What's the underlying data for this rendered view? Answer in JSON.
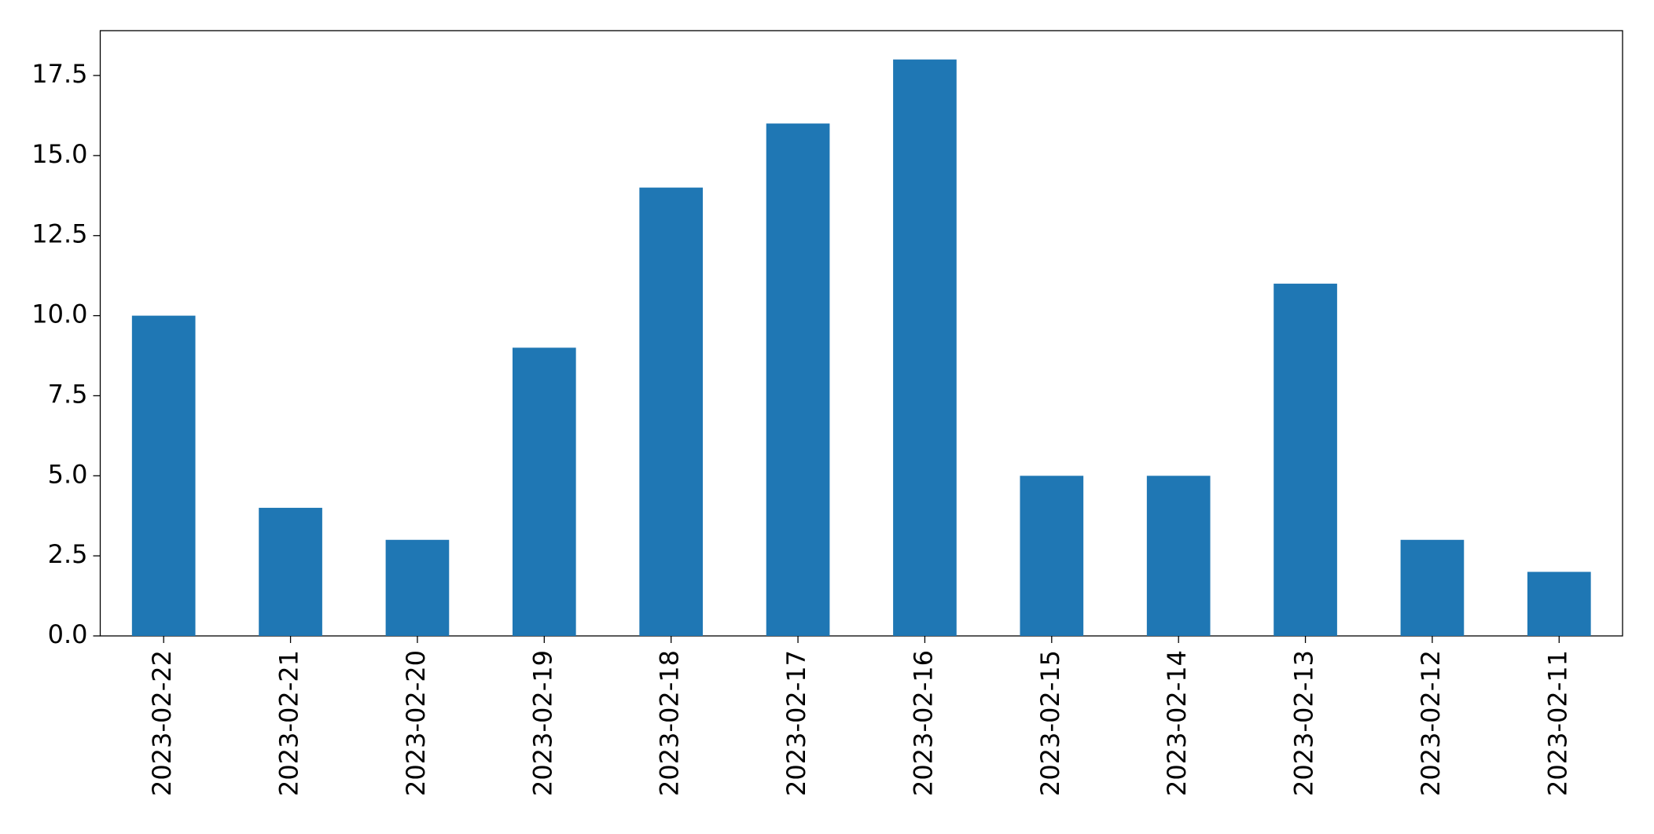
{
  "chart_data": {
    "type": "bar",
    "categories": [
      "2023-02-22",
      "2023-02-21",
      "2023-02-20",
      "2023-02-19",
      "2023-02-18",
      "2023-02-17",
      "2023-02-16",
      "2023-02-15",
      "2023-02-14",
      "2023-02-13",
      "2023-02-12",
      "2023-02-11"
    ],
    "values": [
      10,
      4,
      3,
      9,
      14,
      16,
      18,
      5,
      5,
      11,
      3,
      2
    ],
    "color": "#1f77b4",
    "ylim": [
      0,
      18.9
    ],
    "yticks": [
      {
        "value": 0,
        "label": "0.0"
      },
      2.5,
      {
        "value": 5,
        "label": "5.0"
      },
      7.5,
      {
        "value": 10,
        "label": "10.0"
      },
      12.5,
      {
        "value": 15,
        "label": "15.0"
      },
      17.5
    ],
    "grid": false
  }
}
